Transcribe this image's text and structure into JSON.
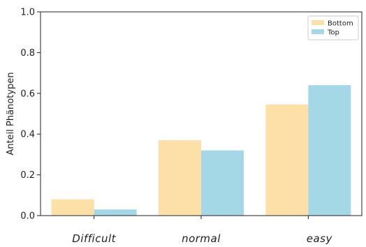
{
  "chart_data": {
    "type": "bar",
    "title": "",
    "xlabel": "",
    "ylabel": "Anteil Phänotypen",
    "categories": [
      "Difficult",
      "normal",
      "easy"
    ],
    "series": [
      {
        "name": "Bottom",
        "color": "#fde0a8",
        "values": [
          0.08,
          0.37,
          0.545
        ]
      },
      {
        "name": "Top",
        "color": "#a5d8e6",
        "values": [
          0.03,
          0.32,
          0.64
        ]
      }
    ],
    "ylim": [
      0,
      1.0
    ],
    "yticks": [
      "0.0",
      "0.2",
      "0.4",
      "0.6",
      "0.8",
      "1.0"
    ],
    "grid": false,
    "legend_position": "top-right"
  }
}
